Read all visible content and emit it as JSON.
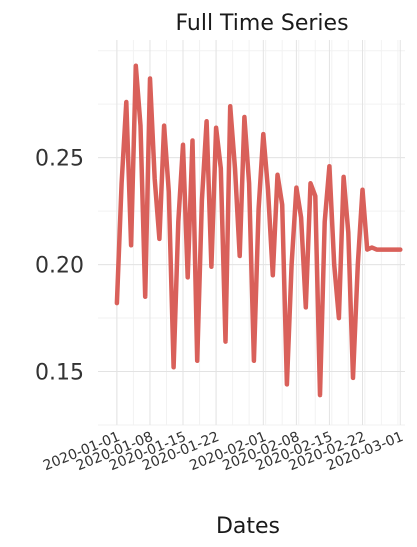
{
  "chart_data": {
    "type": "line",
    "title": "Full Time Series",
    "xlabel": "Dates",
    "ylabel": "",
    "grid": true,
    "legend": "none",
    "color": "#d9605a",
    "ylim": [
      0.125,
      0.305
    ],
    "xlim": [
      "2019-12-28",
      "2020-03-02"
    ],
    "yticks": [
      0.15,
      0.2,
      0.25
    ],
    "ytick_labels": [
      "0.15",
      "0.20",
      "0.25"
    ],
    "xticks": [
      "2020-01-01",
      "2020-01-08",
      "2020-01-15",
      "2020-01-22",
      "2020-02-01",
      "2020-02-08",
      "2020-02-15",
      "2020-02-22",
      "2020-03-01"
    ],
    "xtick_labels": [
      "2020-01-01",
      "2020-01-08",
      "2020-01-15",
      "2020-01-22",
      "2020-02-01",
      "2020-02-08",
      "2020-02-15",
      "2020-02-22",
      "2020-03-01"
    ],
    "x": [
      "2020-01-01",
      "2020-01-02",
      "2020-01-03",
      "2020-01-04",
      "2020-01-05",
      "2020-01-06",
      "2020-01-07",
      "2020-01-08",
      "2020-01-09",
      "2020-01-10",
      "2020-01-11",
      "2020-01-12",
      "2020-01-13",
      "2020-01-14",
      "2020-01-15",
      "2020-01-16",
      "2020-01-17",
      "2020-01-18",
      "2020-01-19",
      "2020-01-20",
      "2020-01-21",
      "2020-01-22",
      "2020-01-23",
      "2020-01-24",
      "2020-01-25",
      "2020-01-26",
      "2020-01-27",
      "2020-01-28",
      "2020-01-29",
      "2020-01-30",
      "2020-01-31",
      "2020-02-01",
      "2020-02-02",
      "2020-02-03",
      "2020-02-04",
      "2020-02-05",
      "2020-02-06",
      "2020-02-07",
      "2020-02-08",
      "2020-02-09",
      "2020-02-10",
      "2020-02-11",
      "2020-02-12",
      "2020-02-13",
      "2020-02-14",
      "2020-02-15",
      "2020-02-16",
      "2020-02-17",
      "2020-02-18",
      "2020-02-19",
      "2020-02-20",
      "2020-02-21",
      "2020-02-22",
      "2020-02-23",
      "2020-02-24",
      "2020-02-25",
      "2020-02-26",
      "2020-02-27",
      "2020-02-28",
      "2020-02-29",
      "2020-03-01"
    ],
    "y": [
      0.182,
      0.238,
      0.276,
      0.209,
      0.293,
      0.265,
      0.185,
      0.287,
      0.24,
      0.212,
      0.265,
      0.234,
      0.152,
      0.22,
      0.256,
      0.194,
      0.258,
      0.155,
      0.23,
      0.267,
      0.199,
      0.264,
      0.245,
      0.164,
      0.274,
      0.245,
      0.204,
      0.269,
      0.238,
      0.155,
      0.226,
      0.261,
      0.235,
      0.195,
      0.242,
      0.228,
      0.144,
      0.2,
      0.236,
      0.222,
      0.18,
      0.238,
      0.232,
      0.139,
      0.22,
      0.246,
      0.2,
      0.175,
      0.241,
      0.215,
      0.147,
      0.2,
      0.235,
      0.207,
      0.208,
      0.207,
      0.207,
      0.207,
      0.207,
      0.207,
      0.207
    ]
  }
}
